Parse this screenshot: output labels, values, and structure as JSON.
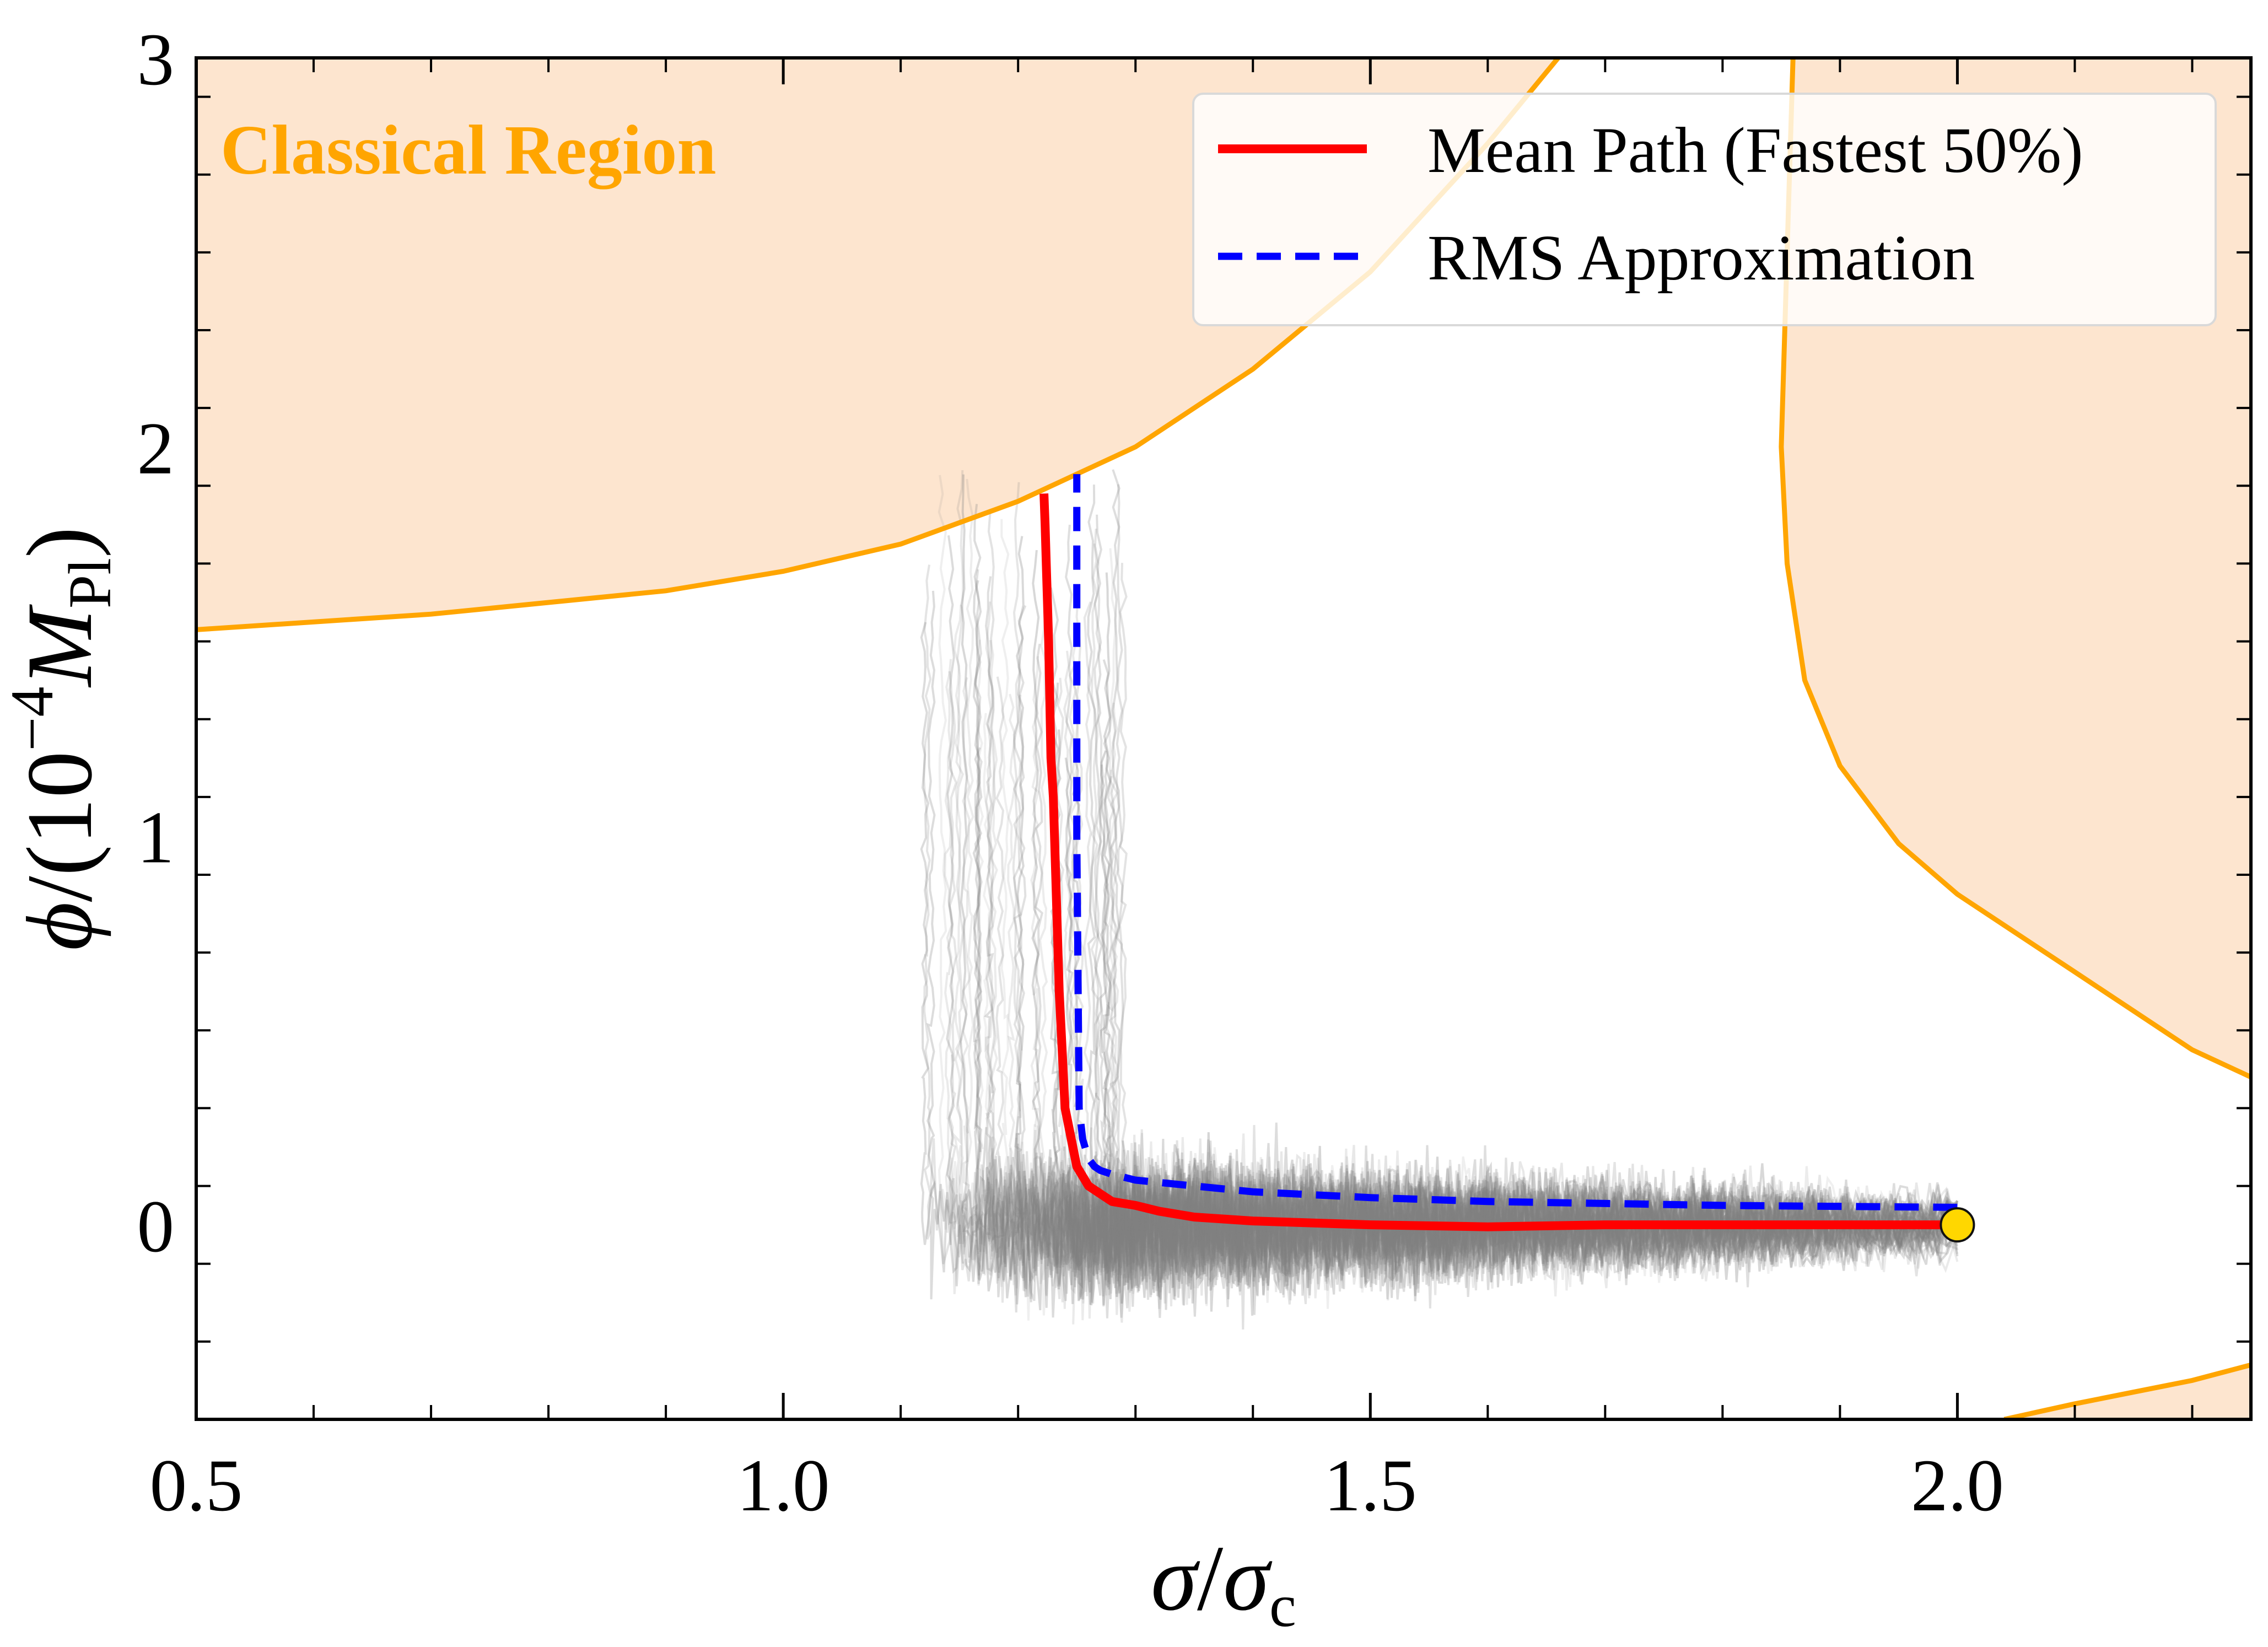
{
  "chart_data": {
    "type": "line",
    "xlabel": "σ/σc",
    "ylabel": "ϕ/(10⁻⁴ M_Pl)",
    "ylabel_parts": {
      "phi": "ϕ",
      "open": "/(10",
      "exponent": "−4",
      "mass": "M",
      "mass_subscript": "Pl",
      "close": ")"
    },
    "xlabel_parts": {
      "sigma": "σ",
      "slash": "/",
      "sigma_c": "σ",
      "subscript": "c"
    },
    "xlim": [
      0.5,
      2.25
    ],
    "ylim": [
      -0.5,
      3.0
    ],
    "xticks": [
      0.5,
      1.0,
      1.5,
      2.0
    ],
    "xtick_labels": [
      "0.5",
      "1.0",
      "1.5",
      "2.0"
    ],
    "xminor_step": 0.1,
    "yticks": [
      0,
      1,
      2,
      3
    ],
    "ytick_labels": [
      "0",
      "1",
      "2",
      "3"
    ],
    "yminor_step": 0.2,
    "annotation": "Classical Region",
    "colors": {
      "classical_fill": "#fde5cf",
      "classical_edge": "#ffa500",
      "mean_path": "#ff0000",
      "rms": "#0000ff",
      "sample_paths": "#808080",
      "endpoint": "#ffd700",
      "annotation": "#ffa500"
    },
    "series": [
      {
        "name": "Mean Path (Fastest 50%)",
        "style": "solid",
        "x": [
          2.0,
          1.9,
          1.8,
          1.7,
          1.6,
          1.5,
          1.45,
          1.4,
          1.35,
          1.32,
          1.3,
          1.28,
          1.26,
          1.25,
          1.24,
          1.235,
          1.232,
          1.23,
          1.228,
          1.227,
          1.226,
          1.225,
          1.224,
          1.223,
          1.222
        ],
        "y": [
          0.0,
          0.0,
          0.0,
          0.0,
          -0.005,
          0.0,
          0.005,
          0.01,
          0.02,
          0.035,
          0.05,
          0.06,
          0.1,
          0.15,
          0.3,
          0.6,
          0.9,
          1.1,
          1.2,
          1.35,
          1.5,
          1.6,
          1.7,
          1.8,
          1.88
        ]
      },
      {
        "name": "RMS Approximation",
        "style": "dashed",
        "x": [
          2.0,
          1.8,
          1.6,
          1.5,
          1.4,
          1.35,
          1.3,
          1.28,
          1.27,
          1.265,
          1.26,
          1.255,
          1.252,
          1.25,
          1.25
        ],
        "y": [
          0.045,
          0.05,
          0.06,
          0.07,
          0.085,
          0.1,
          0.115,
          0.13,
          0.14,
          0.15,
          0.17,
          0.22,
          0.3,
          1.0,
          1.93
        ]
      }
    ],
    "classical_boundaries": [
      {
        "name": "upper-left boundary",
        "x": [
          0.5,
          0.7,
          0.9,
          1.0,
          1.1,
          1.2,
          1.3,
          1.4,
          1.5,
          1.6,
          1.66
        ],
        "y": [
          1.53,
          1.57,
          1.63,
          1.68,
          1.75,
          1.86,
          2.0,
          2.2,
          2.45,
          2.78,
          3.0
        ]
      },
      {
        "name": "right boundary",
        "x": [
          1.86,
          1.855,
          1.85,
          1.855,
          1.87,
          1.9,
          1.95,
          2.0,
          2.05,
          2.1,
          2.15,
          2.2,
          2.25
        ],
        "y": [
          3.0,
          2.5,
          2.0,
          1.7,
          1.4,
          1.18,
          0.98,
          0.85,
          0.75,
          0.65,
          0.55,
          0.45,
          0.38
        ]
      },
      {
        "name": "lower-right boundary",
        "x": [
          2.04,
          2.1,
          2.15,
          2.2,
          2.25
        ],
        "y": [
          -0.5,
          -0.46,
          -0.43,
          -0.4,
          -0.36
        ]
      }
    ],
    "sample_paths_count": 60,
    "endpoint": {
      "x": 2.0,
      "y": 0.0
    },
    "legend": {
      "placement": "top-right",
      "entries": [
        "Mean Path (Fastest 50%)",
        "RMS Approximation"
      ]
    }
  }
}
